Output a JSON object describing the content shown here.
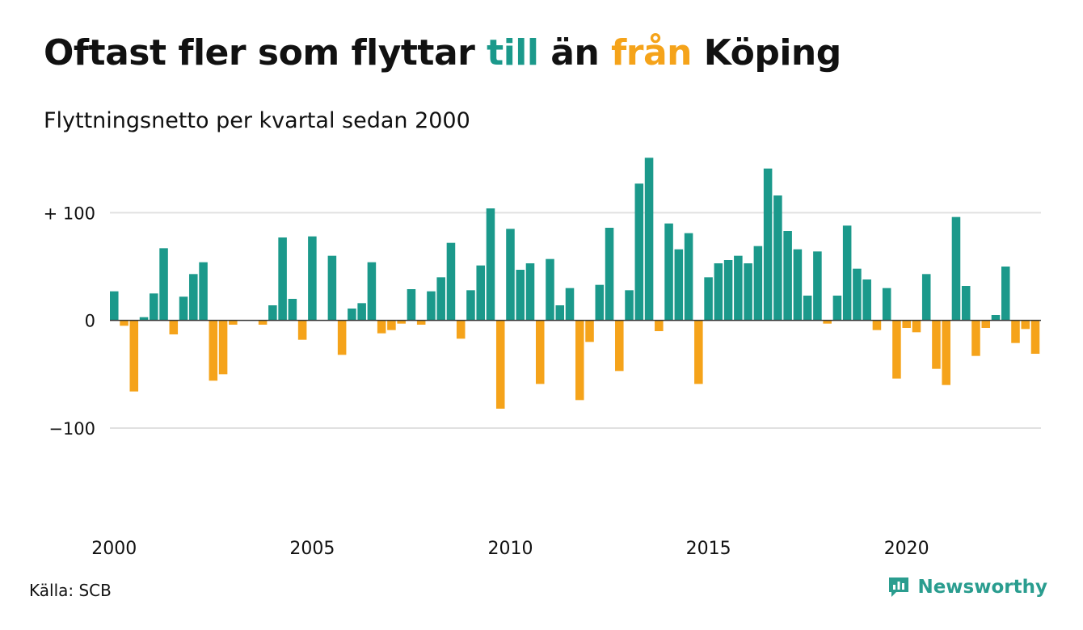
{
  "title": {
    "part1": "Oftast fler som flyttar ",
    "highlight_positive": "till",
    "part2": " än ",
    "highlight_negative": "från",
    "part3": " Köping"
  },
  "subtitle": "Flyttningsnetto per kvartal sedan 2000",
  "source": "Källa: SCB",
  "brand": "Newsworthy",
  "brand_icon": "newsworthy-logo-icon",
  "colors": {
    "positive": "#1b998b",
    "negative": "#f5a31a",
    "title_positive": "#1b998b",
    "title_negative": "#f5a31a",
    "grid": "#e0e0e0",
    "zero_line": "#333333",
    "text": "#111111",
    "brand": "#2a9d8f"
  },
  "chart_data": {
    "type": "bar",
    "title": "Oftast fler som flyttar till än från Köping",
    "subtitle": "Flyttningsnetto per kvartal sedan 2000",
    "x_start": 2000,
    "periods_per_year": 4,
    "ylim": [
      -160,
      155
    ],
    "yticks": [
      100,
      0,
      -100
    ],
    "ytick_labels": [
      "+ 100",
      "0",
      "−100"
    ],
    "xticks": [
      2000,
      2005,
      2010,
      2015,
      2020
    ],
    "xtick_labels": [
      "2000",
      "2005",
      "2010",
      "2015",
      "2020"
    ],
    "grid": true,
    "values": [
      27,
      -5,
      -66,
      3,
      25,
      67,
      -13,
      22,
      43,
      54,
      -56,
      -50,
      -4,
      0,
      0,
      -4,
      14,
      77,
      20,
      -18,
      78,
      0,
      60,
      -32,
      11,
      16,
      54,
      -12,
      -9,
      -3,
      29,
      -4,
      27,
      40,
      72,
      -17,
      28,
      51,
      104,
      -82,
      85,
      47,
      53,
      -59,
      57,
      14,
      30,
      -74,
      -20,
      33,
      86,
      -47,
      28,
      127,
      151,
      -10,
      90,
      66,
      81,
      -59,
      40,
      53,
      56,
      60,
      53,
      69,
      141,
      116,
      83,
      66,
      23,
      64,
      -3,
      23,
      88,
      48,
      38,
      -9,
      30,
      -54,
      -7,
      -11,
      43,
      -45,
      -60,
      96,
      32,
      -33,
      -7,
      5,
      50,
      -21,
      -8,
      -31
    ]
  }
}
